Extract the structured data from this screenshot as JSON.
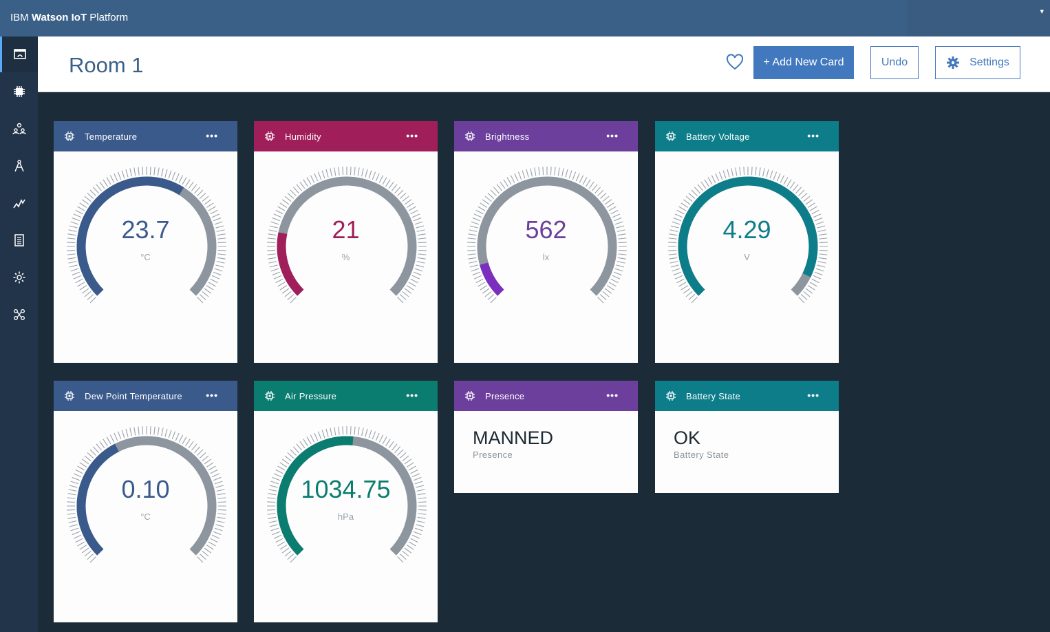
{
  "app": {
    "brand_prefix": "IBM ",
    "brand_bold": "Watson IoT",
    "brand_suffix": " Platform",
    "caret": "▾"
  },
  "sidebar": {
    "items": [
      {
        "icon": "dashboard-icon",
        "active": true
      },
      {
        "icon": "device-chip-icon"
      },
      {
        "icon": "members-icon"
      },
      {
        "icon": "compass-icon"
      },
      {
        "icon": "analytics-icon"
      },
      {
        "icon": "logs-icon"
      },
      {
        "icon": "settings-gear-icon"
      },
      {
        "icon": "extensions-icon"
      }
    ]
  },
  "header": {
    "title": "Room 1",
    "add_card_label": "+ Add New Card",
    "undo_label": "Undo",
    "settings_label": "Settings"
  },
  "cards": [
    {
      "title": "Temperature",
      "value": "23.7",
      "unit": "°C",
      "fraction": 0.62,
      "color": "#3b5a8c",
      "text_color": "#3b5a8c"
    },
    {
      "title": "Humidity",
      "value": "21",
      "unit": "%",
      "fraction": 0.21,
      "color": "#a01f5a",
      "text_color": "#a01f5a"
    },
    {
      "title": "Brightness",
      "value": "562",
      "unit": "lx",
      "fraction": 0.11,
      "color": "#6d3f9c",
      "bar_color": "#7b2fbe",
      "text_color": "#6d3f9c"
    },
    {
      "title": "Battery Voltage",
      "value": "4.29",
      "unit": "V",
      "fraction": 0.93,
      "color": "#0d7d8a",
      "text_color": "#0d7d8a"
    },
    {
      "title": "Dew Point Temperature",
      "value": "0.10",
      "unit": "°C",
      "fraction": 0.4,
      "color": "#3b5a8c",
      "text_color": "#3b5a8c"
    },
    {
      "title": "Air Pressure",
      "value": "1034.75",
      "unit": "hPa",
      "fraction": 0.52,
      "color": "#0b7c70",
      "text_color": "#0b7c70"
    },
    {
      "title": "Presence",
      "value": "MANNED",
      "sub": "Presence",
      "color": "#6d3f9c"
    },
    {
      "title": "Battery State",
      "value": "OK",
      "sub": "Battery State",
      "color": "#0d7d8a"
    }
  ],
  "more_label": "•••"
}
